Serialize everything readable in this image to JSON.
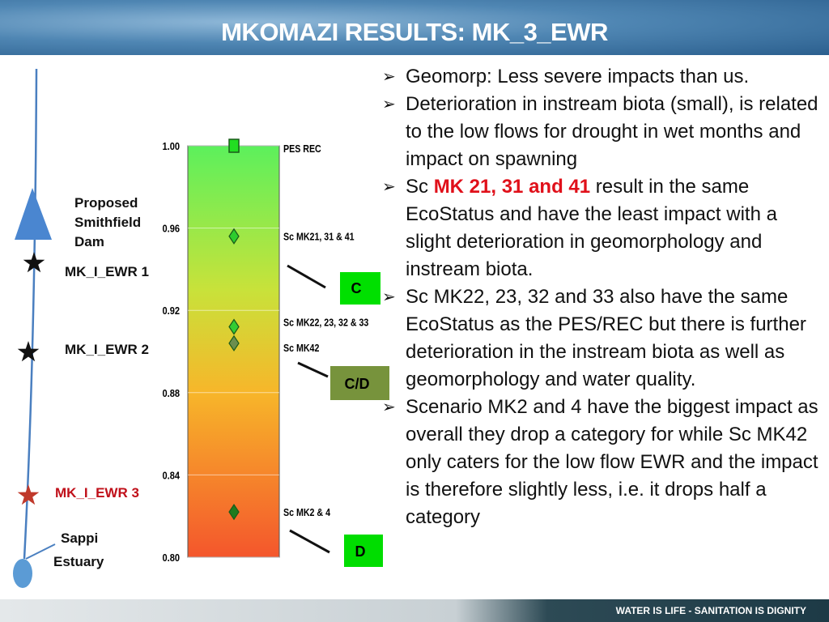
{
  "header": {
    "title": "MKOMAZI RESULTS: MK_3_EWR"
  },
  "river": {
    "dam_label": [
      "Proposed",
      "Smithfield",
      "Dam"
    ],
    "sites": [
      "MK_I_EWR 1",
      "MK_I_EWR 2",
      "MK_I_EWR 3"
    ],
    "estuary_label": [
      "Sappi",
      "Estuary"
    ]
  },
  "chart_data": {
    "type": "scatter",
    "ylim": [
      0.8,
      1.0
    ],
    "yticks": [
      {
        "value": 0.8,
        "label": "0.80"
      },
      {
        "value": 0.84,
        "label": "0.84"
      },
      {
        "value": 0.88,
        "label": "0.88"
      },
      {
        "value": 0.92,
        "label": "0.92"
      },
      {
        "value": 0.96,
        "label": "0.96"
      },
      {
        "value": 1.0,
        "label": "1.00"
      }
    ],
    "grid": true,
    "series": [
      {
        "name": "PES REC",
        "color": "#22dd22",
        "marker": "square",
        "values": [
          1.0
        ]
      },
      {
        "name": "Sc MK21, 31 & 41",
        "color": "#2ecc2e",
        "marker": "diamond",
        "values": [
          0.956
        ]
      },
      {
        "name": "Sc MK22, 23, 32 & 33",
        "color": "#33cc33",
        "marker": "diamond",
        "values": [
          0.912
        ]
      },
      {
        "name": "Sc MK42",
        "color": "#6b8e4e",
        "marker": "diamond",
        "values": [
          0.904
        ]
      },
      {
        "name": "Sc MK2 & 4",
        "color": "#1e7b1e",
        "marker": "diamond",
        "values": [
          0.822
        ]
      }
    ]
  },
  "category_boxes": [
    "C",
    "C/D",
    "D"
  ],
  "bullets": [
    [
      "Geomorp: Less severe impacts than us."
    ],
    [
      "Deterioration in instream biota (small), is related to the low flows for drought in wet months and impact on spawning"
    ],
    [
      "Sc ",
      "MK 21, 31 and 41",
      " result in the same EcoStatus and have the least impact with a slight deterioration in geomorphology and instream biota."
    ],
    [
      "Sc MK22, 23, 32 and 33 also have the same EcoStatus as the PES/REC but there is further deterioration in the instream biota as well as geomorphology and water quality."
    ],
    [
      "Scenario MK2 and 4 have the biggest impact as overall they drop a category for while Sc MK42 only caters for the low flow EWR and the impact is therefore slightly less, i.e. it drops half a category"
    ]
  ],
  "footer": {
    "text": "WATER IS LIFE - SANITATION IS DIGNITY"
  }
}
